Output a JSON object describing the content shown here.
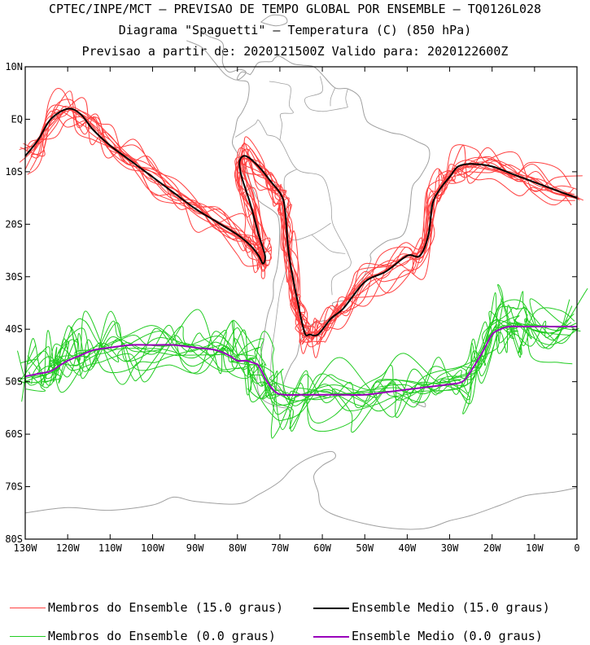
{
  "title_lines": [
    "CPTEC/INPE/MCT — PREVISAO DE TEMPO GLOBAL POR ENSEMBLE — TQ0126L028",
    "Diagrama \"Spaguetti\" — Temperatura (C) (850 hPa)",
    "Previsao a partir de: 2020121500Z  Valido para: 2020122600Z"
  ],
  "legend": [
    {
      "label": "Membros do Ensemble (15.0 graus)",
      "color": "#ff4040",
      "width": 1
    },
    {
      "label": "Ensemble Medio (15.0 graus)",
      "color": "#000000",
      "width": 2
    },
    {
      "label": "Membros do Ensemble (0.0 graus)",
      "color": "#22cc22",
      "width": 1
    },
    {
      "label": "Ensemble Medio (0.0 graus)",
      "color": "#9900bb",
      "width": 2
    }
  ],
  "chart_data": {
    "type": "line",
    "x_tick_labels": [
      "130W",
      "120W",
      "110W",
      "100W",
      "90W",
      "80W",
      "70W",
      "60W",
      "50W",
      "40W",
      "30W",
      "20W",
      "10W",
      "0"
    ],
    "y_tick_labels": [
      "10N",
      "EQ",
      "10S",
      "20S",
      "30S",
      "40S",
      "50S",
      "60S",
      "70S",
      "80S"
    ],
    "xlim": [
      -130,
      0
    ],
    "ylim": [
      -80,
      10
    ],
    "colors": {
      "members_15": "#ff4040",
      "mean_15": "#000000",
      "members_0": "#22cc22",
      "mean_0": "#9900bb",
      "coast": "#a0a0a0"
    },
    "series": [
      {
        "name": "Ensemble Medio (15.0 graus)",
        "x": [
          -130,
          -127,
          -124,
          -120,
          -117,
          -114,
          -110,
          -105,
          -100,
          -95,
          -90,
          -85,
          -80,
          -77,
          -75,
          -74,
          -73.5,
          -75,
          -77,
          -79,
          -79.5,
          -78,
          -75,
          -72,
          -70,
          -69,
          -68.5,
          -68,
          -67,
          -66,
          -65.5,
          -65,
          -64,
          -63,
          -61,
          -58,
          -55,
          -50,
          -45,
          -40,
          -37,
          -35,
          -34,
          -32,
          -30,
          -28,
          -25,
          -20,
          -15,
          -10,
          -5,
          0
        ],
        "y": [
          -7,
          -4,
          0,
          2,
          1,
          -2,
          -5,
          -8,
          -11,
          -14,
          -17,
          -19.5,
          -22,
          -24,
          -26,
          -27.5,
          -26,
          -22,
          -16,
          -11,
          -8,
          -7,
          -9,
          -12,
          -14,
          -16,
          -20,
          -25,
          -30,
          -34,
          -36,
          -38,
          -41,
          -41,
          -41,
          -38,
          -36,
          -31,
          -29,
          -26,
          -26,
          -22,
          -16,
          -13,
          -11,
          -9,
          -8.5,
          -9,
          -10.5,
          -12,
          -13.5,
          -15
        ]
      },
      {
        "name": "Ensemble Medio (0.0 graus)",
        "x": [
          -130,
          -127,
          -124,
          -122,
          -120,
          -117,
          -114,
          -110,
          -105,
          -100,
          -95,
          -90,
          -85,
          -82,
          -80,
          -78,
          -76,
          -75,
          -73,
          -71,
          -69,
          -65,
          -60,
          -55,
          -50,
          -45,
          -40,
          -35,
          -30,
          -27,
          -25,
          -22,
          -20,
          -18,
          -16,
          -14,
          -12,
          -10,
          -5,
          0
        ],
        "y": [
          -49,
          -48.5,
          -48,
          -47,
          -46,
          -45,
          -44,
          -43.5,
          -43,
          -43,
          -43,
          -43.5,
          -44,
          -45,
          -46,
          -46,
          -46.5,
          -47,
          -50,
          -52,
          -52.5,
          -52.5,
          -52.5,
          -52.5,
          -52.5,
          -52,
          -51.5,
          -51,
          -50.5,
          -50,
          -48,
          -44,
          -41,
          -40,
          -39.5,
          -39.5,
          -39.5,
          -39.5,
          -39.5,
          -39.5
        ]
      }
    ]
  }
}
